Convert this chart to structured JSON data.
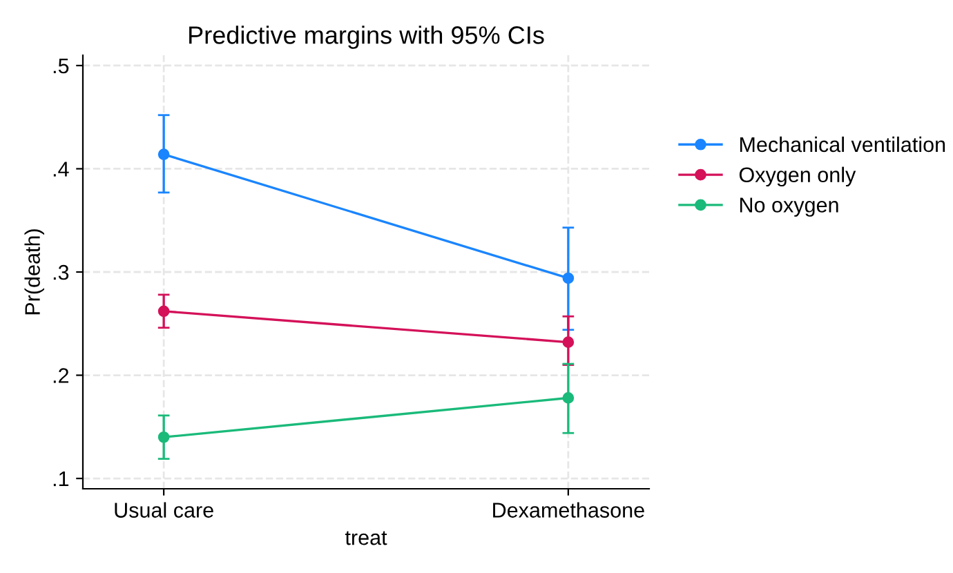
{
  "chart_data": {
    "type": "line",
    "title": "Predictive margins with 95% CIs",
    "xlabel": "treat",
    "ylabel": "Pr(death)",
    "categories": [
      "Usual care",
      "Dexamethasone"
    ],
    "series": [
      {
        "name": "Mechanical ventilation",
        "color": "#1a85ff",
        "values": [
          0.414,
          0.294
        ],
        "errors": [
          [
            0.377,
            0.452
          ],
          [
            0.244,
            0.343
          ]
        ]
      },
      {
        "name": "Oxygen only",
        "color": "#d41159",
        "values": [
          0.262,
          0.232
        ],
        "errors": [
          [
            0.246,
            0.278
          ],
          [
            0.21,
            0.257
          ]
        ]
      },
      {
        "name": "No oxygen",
        "color": "#1aba7a",
        "values": [
          0.14,
          0.178
        ],
        "errors": [
          [
            0.119,
            0.161
          ],
          [
            0.144,
            0.211
          ]
        ]
      }
    ],
    "ylim": [
      0.09,
      0.51
    ],
    "yticks": [
      {
        "value": 0.1,
        "label": ".1"
      },
      {
        "value": 0.2,
        "label": ".2"
      },
      {
        "value": 0.3,
        "label": ".3"
      },
      {
        "value": 0.4,
        "label": ".4"
      },
      {
        "value": 0.5,
        "label": ".5"
      }
    ],
    "grid": true,
    "legend": "right",
    "marker": "circle",
    "line_style": "solid"
  }
}
